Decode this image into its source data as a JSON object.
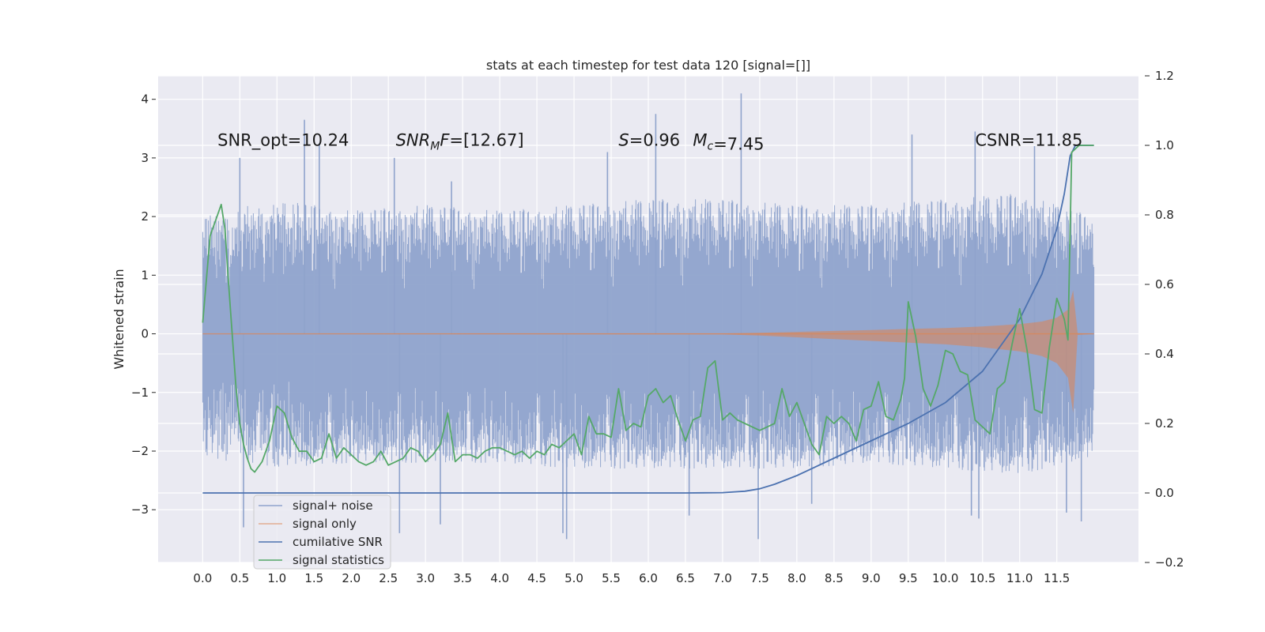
{
  "chart_data": {
    "type": "line",
    "title": "stats at each timestep for test data 120 [signal=[]]",
    "ylabel": "Whitened strain",
    "xlim": [
      -0.6,
      12.6
    ],
    "ylim": [
      -3.9,
      4.4
    ],
    "y2lim": [
      -0.2,
      1.2
    ],
    "grid": true,
    "legend_position": "lower-left",
    "x_ticks": [
      0.0,
      0.5,
      1.0,
      1.5,
      2.0,
      2.5,
      3.0,
      3.5,
      4.0,
      4.5,
      5.0,
      5.5,
      6.0,
      6.5,
      7.0,
      7.5,
      8.0,
      8.5,
      9.0,
      9.5,
      10.0,
      10.5,
      11.0,
      11.5
    ],
    "x_tick_labels": [
      "0.0",
      "0.5",
      "1.0",
      "1.5",
      "2.0",
      "2.5",
      "3.0",
      "3.5",
      "4.0",
      "4.5",
      "5.0",
      "5.5",
      "6.0",
      "6.5",
      "7.0",
      "7.5",
      "8.0",
      "8.5",
      "9.0",
      "9.5",
      "10.0",
      "10.5",
      "11.0",
      "11.5"
    ],
    "y_ticks": [
      -3,
      -2,
      -1,
      0,
      1,
      2,
      3,
      4
    ],
    "y_tick_labels": [
      "−3",
      "−2",
      "−1",
      "0",
      "1",
      "2",
      "3",
      "4"
    ],
    "y2_ticks": [
      -0.2,
      0.0,
      0.2,
      0.4,
      0.6,
      0.8,
      1.0,
      1.2
    ],
    "y2_tick_labels": [
      "−0.2",
      "0.0",
      "0.2",
      "0.4",
      "0.6",
      "0.8",
      "1.0",
      "1.2"
    ],
    "annotations": [
      {
        "text": "SNR_opt=10.24",
        "x": 0.2,
        "y": 3.3
      },
      {
        "text": "SNR_MF=[12.67]",
        "x": 2.6,
        "y": 3.3
      },
      {
        "text": "S=0.96",
        "x": 5.6,
        "y": 3.3
      },
      {
        "text": "M_c=7.45",
        "x": 6.6,
        "y": 3.3
      },
      {
        "text": "CSNR=11.85",
        "x": 10.4,
        "y": 3.3
      }
    ],
    "series": [
      {
        "name": "signal+ noise",
        "axis": "left",
        "color": "#8fa3cc",
        "x_range": [
          0.0,
          12.0
        ],
        "envelope": {
          "x": [
            0.0,
            1.0,
            2.0,
            3.0,
            4.0,
            5.0,
            6.0,
            7.0,
            8.0,
            9.0,
            10.0,
            11.0,
            12.0
          ],
          "upper": [
            2.0,
            2.3,
            2.1,
            2.2,
            2.1,
            2.2,
            2.3,
            2.3,
            2.2,
            2.2,
            2.3,
            2.4,
            2.0
          ],
          "lower": [
            -2.1,
            -2.3,
            -2.2,
            -2.2,
            -2.2,
            -2.3,
            -2.3,
            -2.3,
            -2.3,
            -2.2,
            -2.3,
            -2.4,
            -2.1
          ]
        },
        "peaks": [
          {
            "x": 0.5,
            "y": 3.0
          },
          {
            "x": 0.55,
            "y": -3.3
          },
          {
            "x": 1.37,
            "y": 3.65
          },
          {
            "x": 1.57,
            "y": 3.25
          },
          {
            "x": 2.58,
            "y": 3.0
          },
          {
            "x": 2.65,
            "y": -3.4
          },
          {
            "x": 3.2,
            "y": -3.25
          },
          {
            "x": 3.35,
            "y": 2.6
          },
          {
            "x": 4.85,
            "y": -3.4
          },
          {
            "x": 4.9,
            "y": -3.5
          },
          {
            "x": 5.45,
            "y": 3.1
          },
          {
            "x": 6.1,
            "y": 3.75
          },
          {
            "x": 6.55,
            "y": -3.1
          },
          {
            "x": 7.25,
            "y": 4.1
          },
          {
            "x": 7.48,
            "y": -3.5
          },
          {
            "x": 8.2,
            "y": -2.9
          },
          {
            "x": 9.55,
            "y": 3.4
          },
          {
            "x": 10.4,
            "y": 3.45
          },
          {
            "x": 10.35,
            "y": -3.1
          },
          {
            "x": 10.45,
            "y": -3.15
          },
          {
            "x": 11.2,
            "y": 3.2
          },
          {
            "x": 11.63,
            "y": -3.05
          },
          {
            "x": 11.83,
            "y": -3.2
          }
        ]
      },
      {
        "name": "signal only",
        "axis": "left",
        "color": "#dd8452",
        "envelope": {
          "x": [
            0.0,
            7.0,
            7.5,
            8.0,
            8.5,
            9.0,
            9.5,
            10.0,
            10.5,
            11.0,
            11.3,
            11.5,
            11.65,
            11.72,
            11.78,
            12.0
          ],
          "amplitude": [
            0.0,
            0.01,
            0.03,
            0.06,
            0.09,
            0.12,
            0.15,
            0.18,
            0.23,
            0.3,
            0.38,
            0.5,
            0.75,
            1.35,
            0.02,
            0.0
          ]
        }
      },
      {
        "name": "cumilative SNR",
        "axis": "right",
        "color": "#4c72b0",
        "x": [
          0.0,
          6.5,
          7.0,
          7.3,
          7.5,
          7.7,
          8.0,
          8.5,
          9.0,
          9.5,
          10.0,
          10.5,
          11.0,
          11.3,
          11.5,
          11.6,
          11.68,
          11.75,
          12.0
        ],
        "y": [
          0.0,
          0.0,
          0.001,
          0.005,
          0.012,
          0.025,
          0.05,
          0.1,
          0.15,
          0.2,
          0.26,
          0.35,
          0.5,
          0.63,
          0.76,
          0.86,
          0.97,
          1.0,
          1.0
        ]
      },
      {
        "name": "signal statistics",
        "axis": "right",
        "color": "#55a868",
        "x": [
          0.0,
          0.1,
          0.2,
          0.25,
          0.3,
          0.35,
          0.45,
          0.5,
          0.55,
          0.6,
          0.65,
          0.7,
          0.8,
          0.9,
          1.0,
          1.1,
          1.2,
          1.3,
          1.4,
          1.5,
          1.6,
          1.7,
          1.8,
          1.9,
          2.0,
          2.1,
          2.2,
          2.3,
          2.4,
          2.5,
          2.6,
          2.7,
          2.8,
          2.9,
          3.0,
          3.1,
          3.2,
          3.3,
          3.4,
          3.5,
          3.6,
          3.7,
          3.8,
          3.9,
          4.0,
          4.1,
          4.2,
          4.3,
          4.4,
          4.5,
          4.6,
          4.7,
          4.8,
          4.9,
          5.0,
          5.1,
          5.2,
          5.3,
          5.4,
          5.5,
          5.6,
          5.7,
          5.8,
          5.9,
          6.0,
          6.1,
          6.2,
          6.3,
          6.4,
          6.5,
          6.6,
          6.7,
          6.8,
          6.9,
          7.0,
          7.1,
          7.2,
          7.3,
          7.4,
          7.5,
          7.6,
          7.7,
          7.8,
          7.9,
          8.0,
          8.1,
          8.2,
          8.3,
          8.4,
          8.5,
          8.6,
          8.7,
          8.8,
          8.9,
          9.0,
          9.1,
          9.2,
          9.3,
          9.4,
          9.45,
          9.5,
          9.6,
          9.7,
          9.8,
          9.9,
          10.0,
          10.1,
          10.2,
          10.3,
          10.4,
          10.5,
          10.6,
          10.7,
          10.8,
          10.9,
          11.0,
          11.1,
          11.2,
          11.3,
          11.4,
          11.5,
          11.6,
          11.65,
          11.7,
          11.75,
          11.8,
          11.9,
          12.0
        ],
        "y": [
          0.49,
          0.74,
          0.8,
          0.83,
          0.76,
          0.6,
          0.3,
          0.2,
          0.14,
          0.1,
          0.07,
          0.06,
          0.09,
          0.15,
          0.25,
          0.23,
          0.16,
          0.12,
          0.12,
          0.09,
          0.1,
          0.17,
          0.1,
          0.13,
          0.11,
          0.09,
          0.08,
          0.09,
          0.12,
          0.08,
          0.09,
          0.1,
          0.13,
          0.12,
          0.09,
          0.11,
          0.14,
          0.23,
          0.09,
          0.11,
          0.11,
          0.1,
          0.12,
          0.13,
          0.13,
          0.12,
          0.11,
          0.12,
          0.1,
          0.12,
          0.11,
          0.14,
          0.13,
          0.15,
          0.17,
          0.11,
          0.22,
          0.17,
          0.17,
          0.16,
          0.3,
          0.18,
          0.2,
          0.19,
          0.28,
          0.3,
          0.26,
          0.28,
          0.21,
          0.15,
          0.21,
          0.22,
          0.36,
          0.38,
          0.21,
          0.23,
          0.21,
          0.2,
          0.19,
          0.18,
          0.19,
          0.2,
          0.3,
          0.22,
          0.26,
          0.2,
          0.14,
          0.11,
          0.22,
          0.2,
          0.22,
          0.2,
          0.15,
          0.24,
          0.25,
          0.32,
          0.22,
          0.21,
          0.27,
          0.33,
          0.55,
          0.45,
          0.3,
          0.25,
          0.31,
          0.41,
          0.4,
          0.35,
          0.34,
          0.21,
          0.19,
          0.17,
          0.3,
          0.32,
          0.43,
          0.53,
          0.41,
          0.24,
          0.23,
          0.42,
          0.56,
          0.5,
          0.44,
          0.98,
          0.99,
          1.0,
          1.0,
          1.0
        ]
      }
    ]
  }
}
